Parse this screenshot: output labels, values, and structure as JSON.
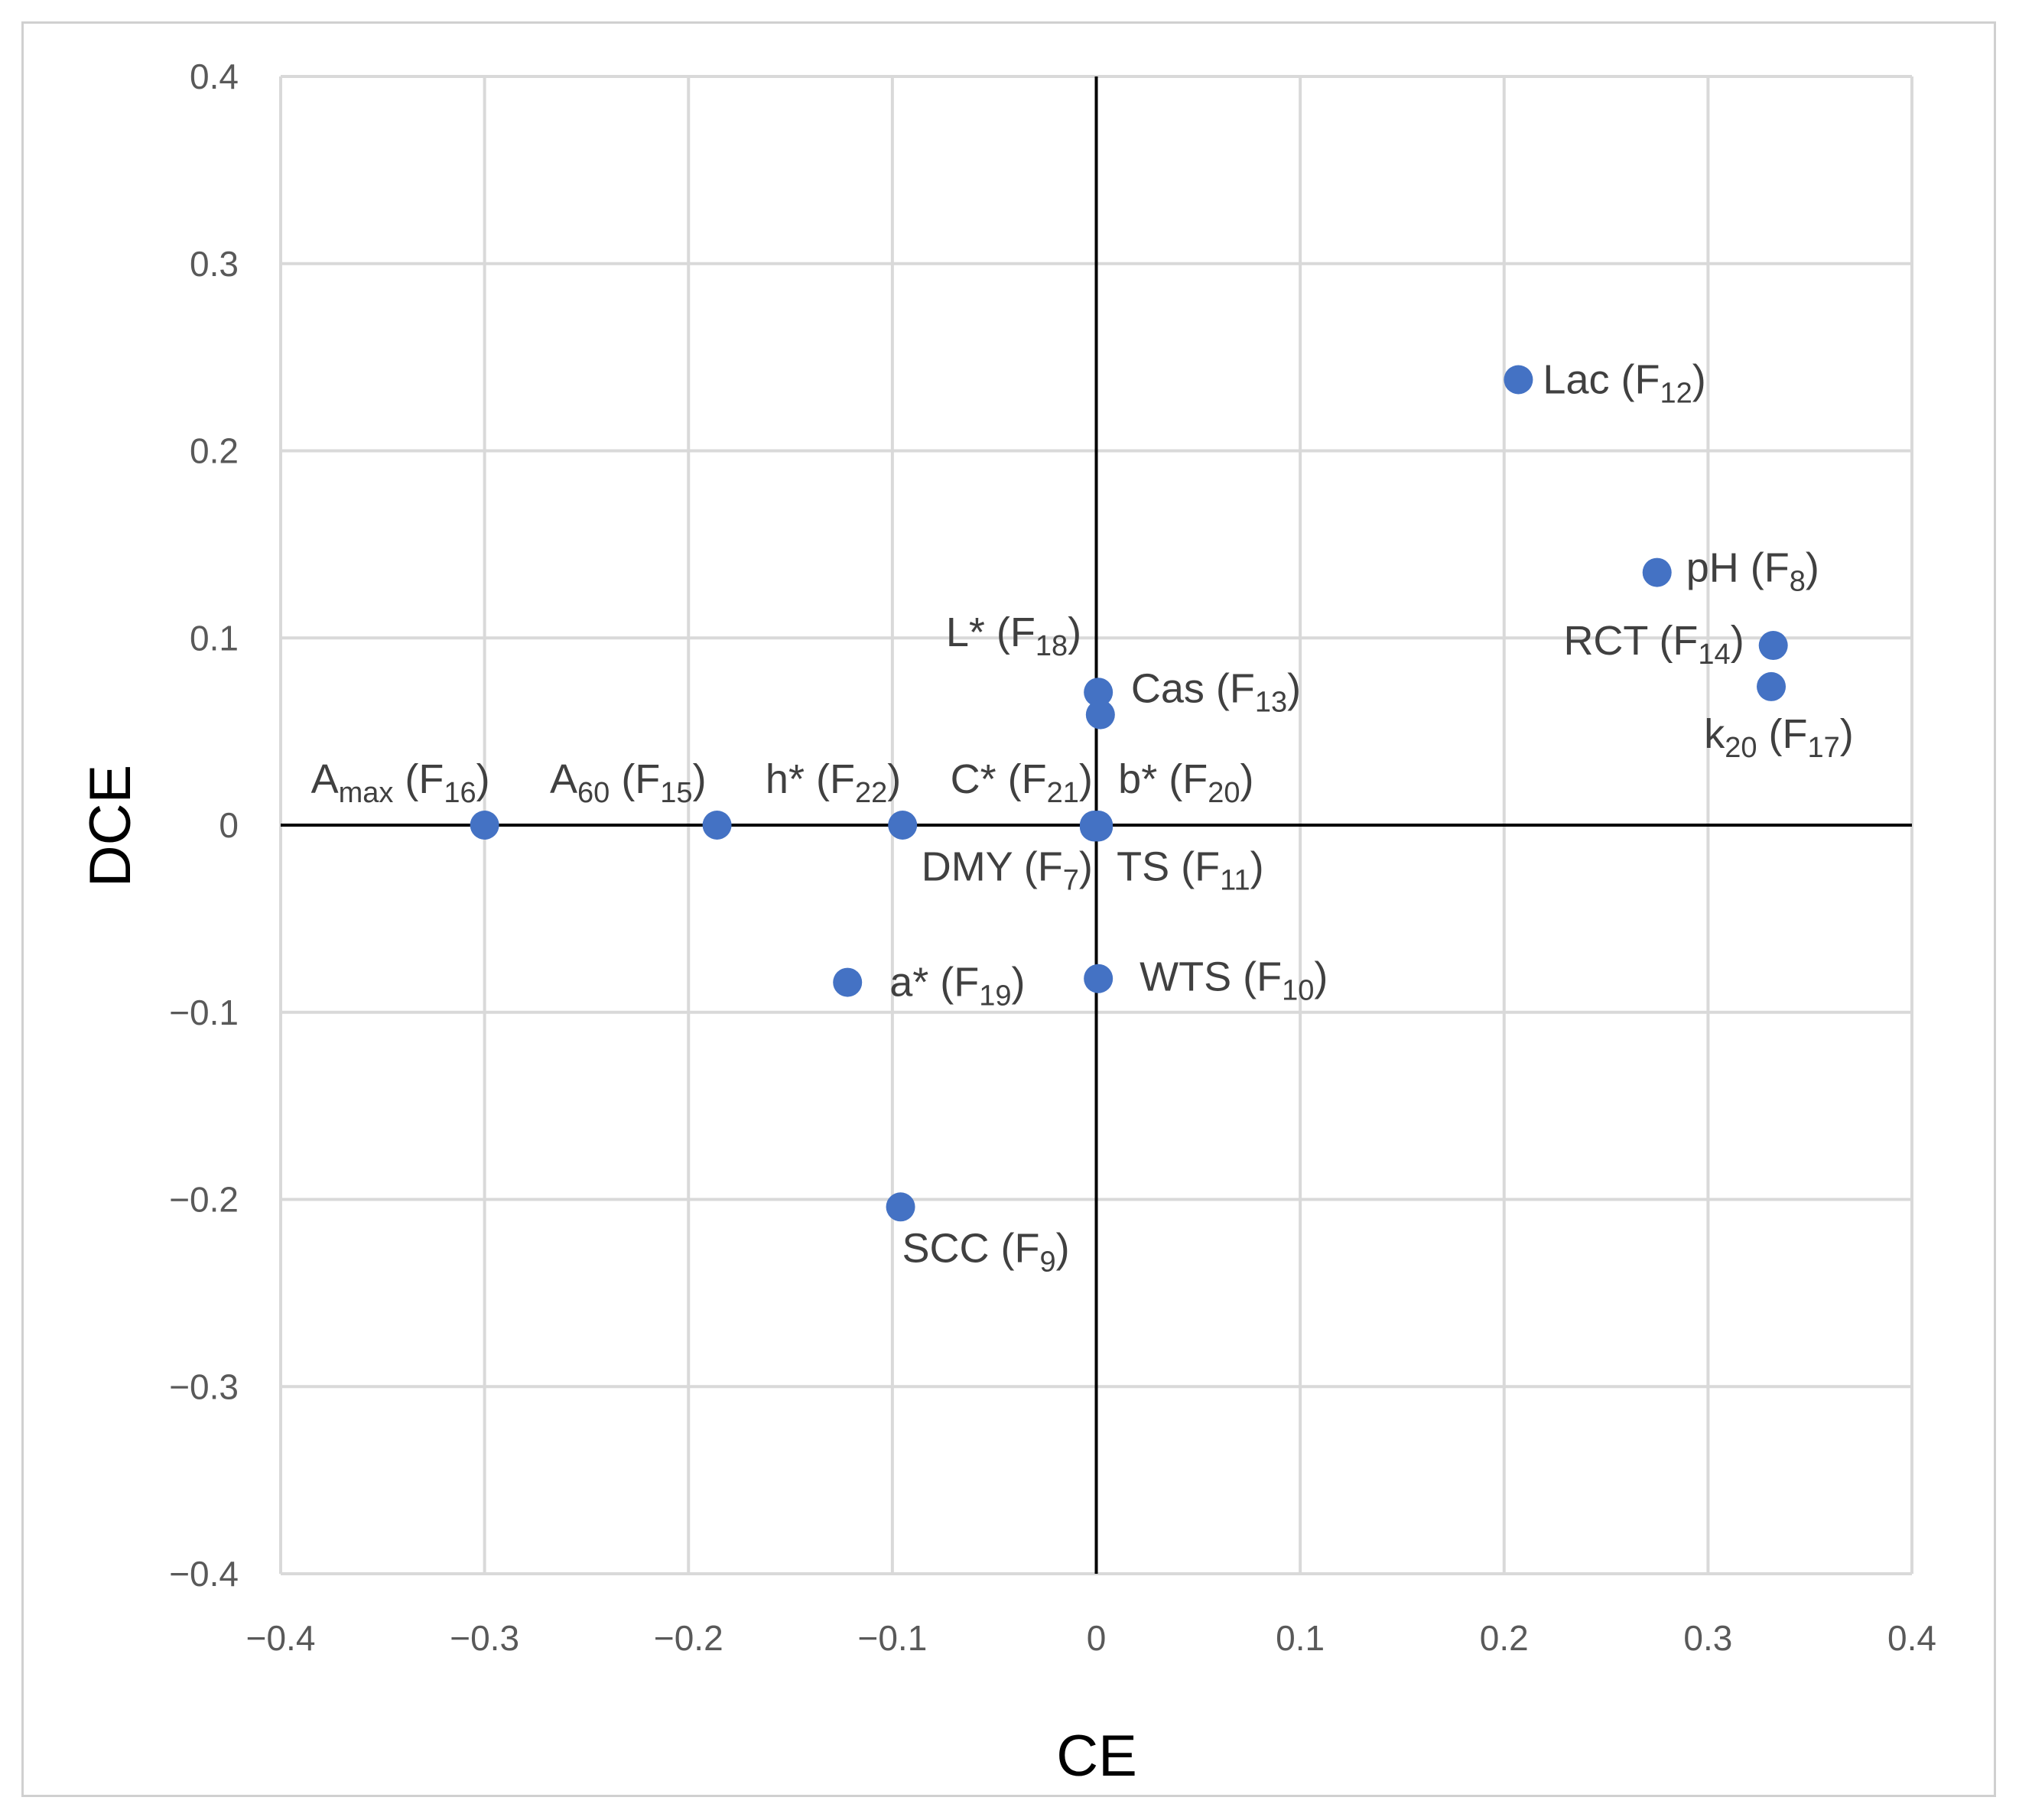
{
  "chart_data": {
    "type": "scatter",
    "title": "",
    "xlabel": "CE",
    "ylabel": "DCE",
    "xlim": [
      -0.4,
      0.4
    ],
    "ylim": [
      -0.4,
      0.4
    ],
    "xticks": [
      -0.4,
      -0.3,
      -0.2,
      -0.1,
      0,
      0.1,
      0.2,
      0.3,
      0.4
    ],
    "yticks": [
      -0.4,
      -0.3,
      -0.2,
      -0.1,
      0,
      0.1,
      0.2,
      0.3,
      0.4
    ],
    "xtick_labels": [
      "−0.4",
      "−0.3",
      "−0.2",
      "−0.1",
      "0",
      "0.1",
      "0.2",
      "0.3",
      "0.4"
    ],
    "ytick_labels": [
      "−0.4",
      "−0.3",
      "−0.2",
      "−0.1",
      "0",
      "0.1",
      "0.2",
      "0.3",
      "0.4"
    ],
    "grid": true,
    "marker_color": "#4472C4",
    "points": [
      {
        "id": "lac",
        "label": "Lac (F12)",
        "base": "Lac (F",
        "sub_text": "12",
        "tail": ")",
        "x": 0.207,
        "y": 0.238,
        "anchor": "start"
      },
      {
        "id": "ph",
        "label": "pH (F8)",
        "base": "pH (F",
        "sub_text": "8",
        "tail": ")",
        "x": 0.275,
        "y": 0.135,
        "anchor": "start"
      },
      {
        "id": "rct",
        "label": "RCT (F14)",
        "base": "RCT (F",
        "sub_text": "14",
        "tail": ")",
        "x": 0.332,
        "y": 0.096,
        "anchor": "end"
      },
      {
        "id": "k20",
        "label": "k20 (F17)",
        "base": "k",
        "sub_text": "20",
        "tail": " (F",
        "sub2": "17",
        "tail2": ")",
        "x": 0.331,
        "y": 0.074,
        "anchor": "middle"
      },
      {
        "id": "lstar",
        "label": "L* (F18)",
        "base": "L* (F",
        "sub_text": "18",
        "tail": ")",
        "x": 0.001,
        "y": 0.071,
        "anchor": "end"
      },
      {
        "id": "cas",
        "label": "Cas (F13)",
        "base": "Cas (F",
        "sub_text": "13",
        "tail": ")",
        "x": 0.002,
        "y": 0.059,
        "anchor": "start"
      },
      {
        "id": "amax",
        "label": "Amax (F16)",
        "base": "A",
        "sub_text": "max",
        "tail": " (F",
        "sub2": "16",
        "tail2": ")",
        "x": -0.3,
        "y": 0.0,
        "anchor": "middle"
      },
      {
        "id": "a60",
        "label": "A60 (F15)",
        "base": "A",
        "sub_text": "60",
        "tail": " (F",
        "sub2": "15",
        "tail2": ")",
        "x": -0.186,
        "y": 0.0,
        "anchor": "end"
      },
      {
        "id": "hstar",
        "label": "h* (F22)",
        "base": "h* (F",
        "sub_text": "22",
        "tail": ")",
        "x": -0.095,
        "y": 0.0,
        "anchor": "end"
      },
      {
        "id": "cstar",
        "label": "C* (F21)",
        "base": "C* (F",
        "sub_text": "21",
        "tail": ")",
        "x": -0.001,
        "y": 0.0,
        "anchor": "end"
      },
      {
        "id": "bstar",
        "label": "b* (F20)",
        "base": "b* (F",
        "sub_text": "20",
        "tail": ")",
        "x": 0.001,
        "y": 0.0,
        "anchor": "start"
      },
      {
        "id": "dmy",
        "label": "DMY (F7)",
        "base": "DMY (F",
        "sub_text": "7",
        "tail": ")",
        "x": -0.001,
        "y": -0.001,
        "anchor": "end"
      },
      {
        "id": "ts",
        "label": "TS (F11)",
        "base": "TS (F",
        "sub_text": "11",
        "tail": ")",
        "x": 0.001,
        "y": -0.001,
        "anchor": "start"
      },
      {
        "id": "astar",
        "label": "a* (F19)",
        "base": "a* (F",
        "sub_text": "19",
        "tail": ")",
        "x": -0.122,
        "y": -0.084,
        "anchor": "start"
      },
      {
        "id": "wts",
        "label": "WTS (F10)",
        "base": "WTS (F",
        "sub_text": "10",
        "tail": ")",
        "x": 0.001,
        "y": -0.082,
        "anchor": "start"
      },
      {
        "id": "scc",
        "label": "SCC (F9)",
        "base": "SCC (F",
        "sub_text": "9",
        "tail": ")",
        "x": -0.096,
        "y": -0.204,
        "anchor": "start"
      }
    ]
  }
}
